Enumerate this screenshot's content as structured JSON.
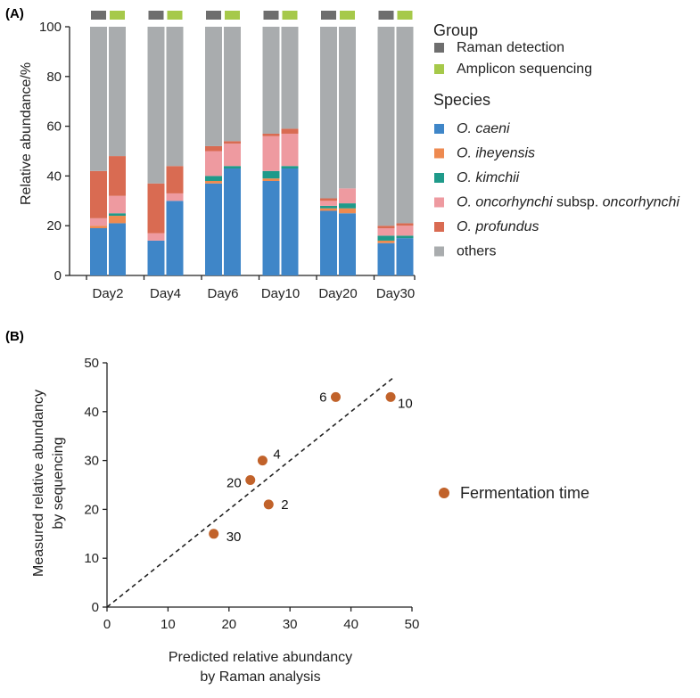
{
  "chart_data": [
    {
      "panel": "(A)",
      "type": "bar",
      "stacked": true,
      "ylabel": "Relative abundance/%",
      "ylim": [
        0,
        100
      ],
      "yticks": [
        0,
        20,
        40,
        60,
        80,
        100
      ],
      "categories": [
        "Day2",
        "Day4",
        "Day6",
        "Day10",
        "Day20",
        "Day30"
      ],
      "group_title": "Group",
      "groups": [
        {
          "name": "Raman detection",
          "color": "#6e6e6e"
        },
        {
          "name": "Amplicon sequencing",
          "color": "#a6c94a"
        }
      ],
      "species_title": "Species",
      "species": [
        {
          "parts": [
            {
              "text": "O. caeni",
              "italic": true
            }
          ],
          "color": "#3f86c8"
        },
        {
          "parts": [
            {
              "text": "O. iheyensis",
              "italic": true
            }
          ],
          "color": "#ee8a50"
        },
        {
          "parts": [
            {
              "text": "O. kimchii",
              "italic": true
            }
          ],
          "color": "#1f9a8a"
        },
        {
          "parts": [
            {
              "text": "O. oncorhynchi",
              "italic": true
            },
            {
              "text": " subsp. ",
              "italic": false
            },
            {
              "text": "oncorhynchi",
              "italic": true
            }
          ],
          "color": "#ee9aa0"
        },
        {
          "parts": [
            {
              "text": "O. profundus",
              "italic": true
            }
          ],
          "color": "#d96b52"
        },
        {
          "parts": [
            {
              "text": "others",
              "italic": false
            }
          ],
          "color": "#a9acae"
        }
      ],
      "values": {
        "Raman detection": [
          [
            19,
            1,
            0,
            3,
            19,
            58
          ],
          [
            14,
            0,
            0,
            3,
            20,
            63
          ],
          [
            37,
            1,
            2,
            10,
            2,
            48
          ],
          [
            38,
            1,
            3,
            14,
            1,
            43
          ],
          [
            26,
            1,
            1,
            2,
            1,
            69
          ],
          [
            13,
            1,
            2,
            3,
            1,
            80
          ]
        ],
        "Amplicon sequencing": [
          [
            21,
            3,
            1,
            7,
            16,
            52
          ],
          [
            30,
            0,
            0,
            3,
            11,
            56
          ],
          [
            43,
            0,
            1,
            9,
            1,
            46
          ],
          [
            43,
            0,
            1,
            13,
            2,
            41
          ],
          [
            25,
            2,
            2,
            6,
            0,
            65
          ],
          [
            15,
            0,
            1,
            4,
            1,
            79
          ]
        ]
      }
    },
    {
      "panel": "(B)",
      "type": "scatter",
      "xlabel_lines": [
        "Predicted relative abundancy",
        "by Raman analysis"
      ],
      "ylabel_lines": [
        "Measured relative abundancy",
        "by sequencing"
      ],
      "xlim": [
        0,
        50
      ],
      "ylim": [
        0,
        50
      ],
      "xticks": [
        0,
        10,
        20,
        30,
        40,
        50
      ],
      "yticks": [
        0,
        10,
        20,
        30,
        40,
        50
      ],
      "series_name": "Fermentation time",
      "color": "#c1622a",
      "points": [
        {
          "x": 26.5,
          "y": 21,
          "label": "2"
        },
        {
          "x": 25.5,
          "y": 30,
          "label": "4"
        },
        {
          "x": 37.5,
          "y": 43,
          "label": "6"
        },
        {
          "x": 46.5,
          "y": 43,
          "label": "10"
        },
        {
          "x": 23.5,
          "y": 26,
          "label": "20"
        },
        {
          "x": 17.5,
          "y": 15,
          "label": "30"
        }
      ],
      "reference_line": {
        "x": [
          0,
          47
        ],
        "y": [
          0,
          47
        ]
      }
    }
  ]
}
